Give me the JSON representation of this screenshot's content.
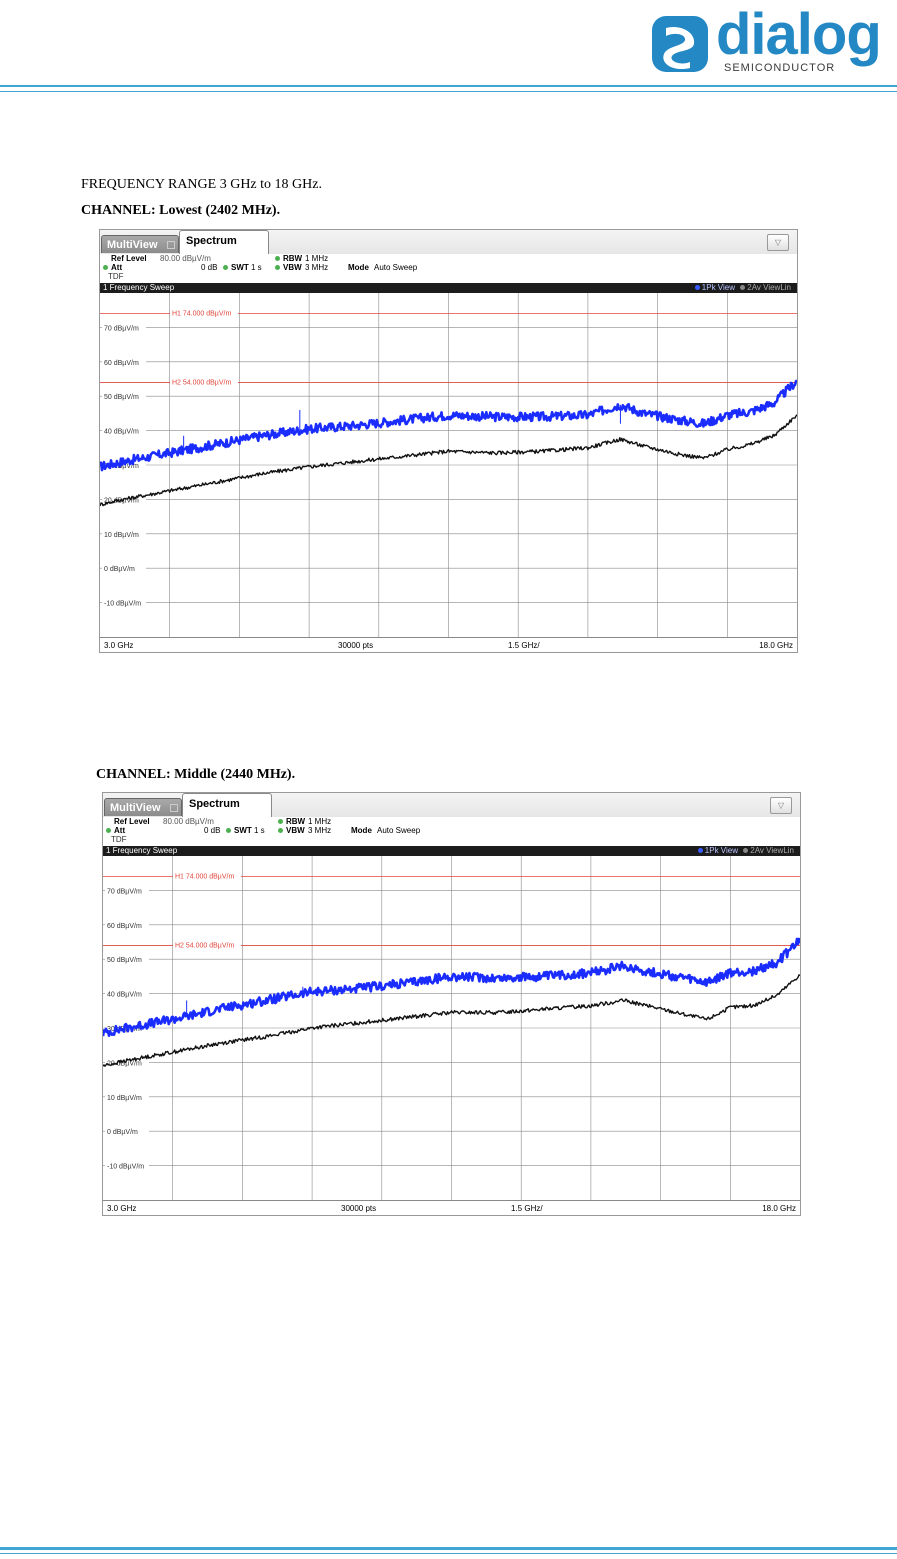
{
  "logo": {
    "wordmark": "dialog",
    "subtitle": "SEMICONDUCTOR",
    "color": "#2488c4"
  },
  "captions": {
    "range": "FREQUENCY RANGE 3 GHz to 18 GHz.",
    "channel_low_prefix": "CHANNEL:",
    "channel_low_value": "Lowest (2402 MHz).",
    "channel_mid_prefix": "CHANNEL:",
    "channel_mid_value": "Middle (2440 MHz)."
  },
  "analyzer": {
    "tab_multiview": "MultiView",
    "tab_spectrum": "Spectrum",
    "dropdown": "▽",
    "ref_level_label": "Ref Level",
    "ref_level_value": "80.00 dBµV/m",
    "att_label": "Att",
    "att_value": "0 dB",
    "swt_label": "SWT",
    "swt_value": "1 s",
    "rbw_label": "RBW",
    "rbw_value": "1 MHz",
    "vbw_label": "VBW",
    "vbw_value": "3 MHz",
    "mode_label": "Mode",
    "mode_value": "Auto Sweep",
    "tdf": "TDF",
    "window_title": "1 Frequency Sweep",
    "trace1_label": "1Pk View",
    "trace2_label": "2Av ViewLin",
    "start": "3.0 GHz",
    "points": "30000 pts",
    "span_per_div": "1.5 GHz/",
    "stop": "18.0 GHz",
    "line_h1": "H1  74.000 dBµV/m",
    "line_h2": "H2  54.000 dBµV/m"
  },
  "chart_data": [
    {
      "type": "line",
      "title": "1 Frequency Sweep",
      "xlabel": "",
      "ylabel": "",
      "xlim": [
        3.0,
        18.0
      ],
      "ylim": [
        -20,
        80
      ],
      "x_unit": "GHz",
      "y_unit": "dBµV/m",
      "yticks": [
        "70 dBµV/m",
        "60 dBµV/m",
        "50 dBµV/m",
        "40 dBµV/m",
        "30 dBµV/m",
        "20 dBµV/m",
        "10 dBµV/m",
        "0 dBµV/m",
        "-10 dBµV/m"
      ],
      "limit_lines": [
        {
          "name": "H1",
          "value": 74.0
        },
        {
          "name": "H2",
          "value": 54.0
        }
      ],
      "grid": true,
      "series": [
        {
          "name": "1Pk View",
          "color": "#1a2cff",
          "x": [
            3.0,
            3.5,
            4.5,
            5.5,
            6.5,
            7.5,
            8.5,
            9.5,
            10.5,
            11.5,
            12.5,
            13.5,
            14.2,
            14.7,
            15.5,
            16.0,
            16.5,
            17.0,
            17.5,
            18.0
          ],
          "values": [
            29.5,
            31,
            33.5,
            36,
            38.5,
            40.5,
            41.5,
            43,
            44.5,
            44,
            44,
            44.5,
            47.5,
            45,
            43,
            42,
            44.5,
            45.5,
            48,
            54.5
          ]
        },
        {
          "name": "2Av ViewLin",
          "color": "#111111",
          "x": [
            3.0,
            3.5,
            4.5,
            5.5,
            6.5,
            7.5,
            8.5,
            9.5,
            10.5,
            11.5,
            12.5,
            13.5,
            14.2,
            14.7,
            15.5,
            16.0,
            16.5,
            17.0,
            17.5,
            18.0
          ],
          "values": [
            18.5,
            20,
            22.5,
            25,
            27.5,
            29.5,
            31,
            32.5,
            34,
            33.5,
            34,
            35,
            37.5,
            35.5,
            33,
            32,
            34.5,
            36,
            38.5,
            44.5
          ]
        }
      ],
      "spikes": [
        {
          "x": 4.8,
          "peak": 38.5
        },
        {
          "x": 7.3,
          "peak": 46.0
        },
        {
          "x": 14.2,
          "peak": 42.0
        }
      ]
    },
    {
      "type": "line",
      "title": "1 Frequency Sweep",
      "xlabel": "",
      "ylabel": "",
      "xlim": [
        3.0,
        18.0
      ],
      "ylim": [
        -20,
        80
      ],
      "x_unit": "GHz",
      "y_unit": "dBµV/m",
      "yticks": [
        "70 dBµV/m",
        "60 dBµV/m",
        "50 dBµV/m",
        "40 dBµV/m",
        "30 dBµV/m",
        "20 dBµV/m",
        "10 dBµV/m",
        "0 dBµV/m",
        "-10 dBµV/m"
      ],
      "limit_lines": [
        {
          "name": "H1",
          "value": 74.0
        },
        {
          "name": "H2",
          "value": 54.0
        }
      ],
      "grid": true,
      "series": [
        {
          "name": "1Pk View",
          "color": "#1a2cff",
          "x": [
            3.0,
            3.5,
            4.5,
            5.5,
            6.5,
            7.5,
            8.5,
            9.5,
            10.5,
            11.5,
            12.5,
            13.5,
            14.2,
            14.7,
            15.5,
            16.0,
            16.5,
            17.0,
            17.5,
            18.0
          ],
          "values": [
            28.5,
            30,
            32.5,
            35.5,
            38,
            40.5,
            41.5,
            43,
            45,
            44.5,
            45,
            46,
            48,
            46.5,
            44.5,
            43,
            46,
            46.5,
            49,
            55.5
          ]
        },
        {
          "name": "2Av ViewLin",
          "color": "#111111",
          "x": [
            3.0,
            3.5,
            4.5,
            5.5,
            6.5,
            7.5,
            8.5,
            9.5,
            10.5,
            11.5,
            12.5,
            13.5,
            14.2,
            14.7,
            15.5,
            16.0,
            16.5,
            17.0,
            17.5,
            18.0
          ],
          "values": [
            19,
            20.5,
            23,
            25.5,
            27.5,
            30,
            31.5,
            33,
            34.5,
            34.5,
            35.5,
            36.5,
            38,
            36.5,
            34,
            32.5,
            36,
            36.5,
            39.5,
            45.5
          ]
        }
      ],
      "spikes": [
        {
          "x": 4.8,
          "peak": 38.0
        },
        {
          "x": 7.3,
          "peak": 42.0
        }
      ]
    }
  ]
}
